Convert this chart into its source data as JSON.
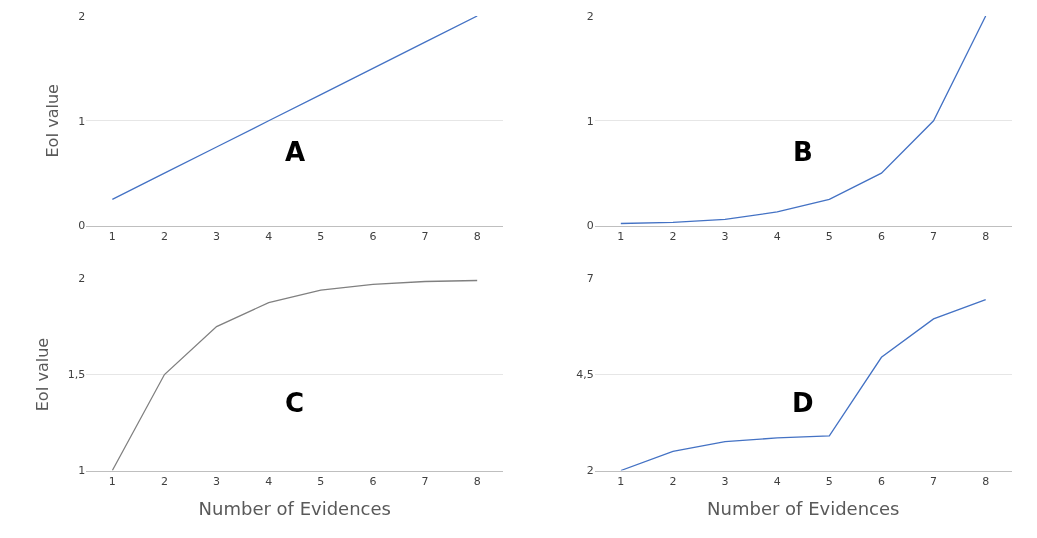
{
  "chart_data": [
    {
      "type": "line",
      "ylabel": "EoI value",
      "annotations": [
        "A"
      ],
      "categories": [
        "1",
        "2",
        "3",
        "4",
        "5",
        "6",
        "7",
        "8"
      ],
      "series": [
        {
          "color": "#4472c4",
          "values": [
            0.25,
            0.5,
            0.75,
            1,
            1.25,
            1.5,
            1.75,
            2
          ]
        }
      ],
      "ylim": [
        0,
        2
      ],
      "yticks": [
        0,
        1,
        2
      ],
      "grid": "y"
    },
    {
      "type": "line",
      "annotations": [
        "B"
      ],
      "categories": [
        "1",
        "2",
        "3",
        "4",
        "5",
        "6",
        "7",
        "8"
      ],
      "series": [
        {
          "color": "#4472c4",
          "values": [
            0.02,
            0.03,
            0.06,
            0.13,
            0.25,
            0.5,
            1,
            2
          ]
        }
      ],
      "ylim": [
        0,
        2
      ],
      "yticks": [
        0,
        1,
        2
      ],
      "grid": "y"
    },
    {
      "type": "line",
      "ylabel": "EoI value",
      "xlabel": "Number of Evidences",
      "annotations": [
        "C"
      ],
      "categories": [
        "1",
        "2",
        "3",
        "4",
        "5",
        "6",
        "7",
        "8"
      ],
      "series": [
        {
          "color": "#808080",
          "values": [
            1,
            1.5,
            1.75,
            1.875,
            1.94,
            1.97,
            1.985,
            1.99
          ]
        }
      ],
      "ylim": [
        1,
        2
      ],
      "yticks": [
        1,
        {
          "value": 1.5,
          "label": "1,5"
        },
        2
      ],
      "grid": "y"
    },
    {
      "type": "line",
      "xlabel": "Number of Evidences",
      "annotations": [
        "D"
      ],
      "categories": [
        "1",
        "2",
        "3",
        "4",
        "5",
        "6",
        "7",
        "8"
      ],
      "series": [
        {
          "color": "#4472c4",
          "values": [
            2,
            2.5,
            2.75,
            2.85,
            2.9,
            4.95,
            5.95,
            6.45
          ]
        }
      ],
      "ylim": [
        2,
        7
      ],
      "yticks": [
        2,
        {
          "value": 4.5,
          "label": "4,5"
        },
        7
      ],
      "grid": "y"
    }
  ]
}
